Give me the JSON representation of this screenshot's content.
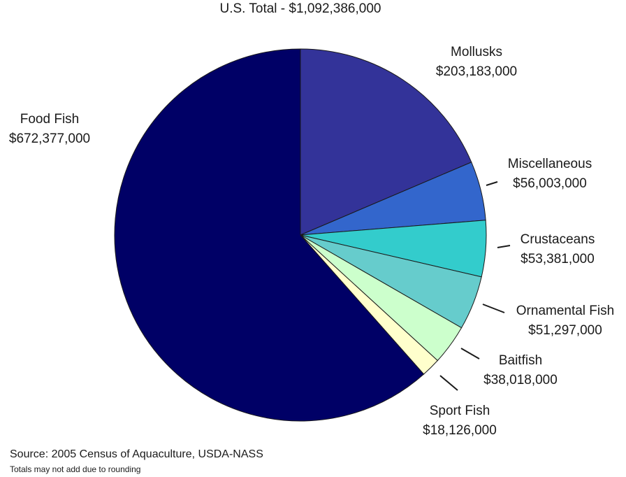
{
  "chart_data": {
    "type": "pie",
    "title": "U.S. Total - $1,092,386,000",
    "slices": [
      {
        "label": "Mollusks",
        "value": 203183000,
        "value_label": "$203,183,000",
        "color": "#333399"
      },
      {
        "label": "Miscellaneous",
        "value": 56003000,
        "value_label": "$56,003,000",
        "color": "#3366cc"
      },
      {
        "label": "Crustaceans",
        "value": 53381000,
        "value_label": "$53,381,000",
        "color": "#33cccc"
      },
      {
        "label": "Ornamental Fish",
        "value": 51297000,
        "value_label": "$51,297,000",
        "color": "#66cccc"
      },
      {
        "label": "Baitfish",
        "value": 38018000,
        "value_label": "$38,018,000",
        "color": "#ccffcc"
      },
      {
        "label": "Sport Fish",
        "value": 18126000,
        "value_label": "$18,126,000",
        "color": "#ffffcc"
      },
      {
        "label": "Food Fish",
        "value": 672377000,
        "value_label": "$672,377,000",
        "color": "#000066"
      }
    ],
    "start": "12 o'clock, clockwise"
  },
  "source": "Source:  2005 Census of Aquaculture, USDA-NASS",
  "note": "Totals may not add due to rounding"
}
